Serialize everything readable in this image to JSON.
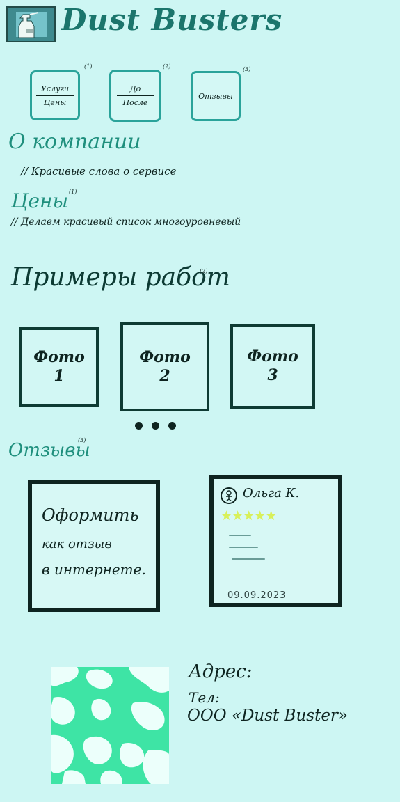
{
  "header": {
    "logo_icon": "spray-bottle-icon",
    "title": "Dust Busters"
  },
  "nav": [
    {
      "top": "Услуги",
      "bottom": "Цены",
      "sup": "(1)"
    },
    {
      "top": "До",
      "bottom": "После",
      "sup": "(2)"
    },
    {
      "top": "Отзывы",
      "bottom": "",
      "sup": "(3)"
    }
  ],
  "about": {
    "heading": "О компании",
    "note": "// Красивые слова о сервисе"
  },
  "prices": {
    "heading": "Цены",
    "sup": "(1)",
    "note": "// Делаем красивый список многоуровневый"
  },
  "works": {
    "heading": "Примеры работ",
    "sup": "(2)",
    "photos": [
      {
        "label": "Фото",
        "num": "1"
      },
      {
        "label": "Фото",
        "num": "2"
      },
      {
        "label": "Фото",
        "num": "3"
      }
    ]
  },
  "reviews": {
    "heading": "Отзывы",
    "sup": "(3)",
    "note_lines": [
      "Оформить",
      "как отзыв",
      "в интернете."
    ],
    "card": {
      "avatar_icon": "person-icon",
      "name": "Ольга К.",
      "stars": "★★★★★",
      "rating": 5,
      "star_color": "#d8f05a",
      "date": "09.09.2023"
    }
  },
  "footer": {
    "map_icon": "map-placeholder-icon",
    "address_label": "Адрес:",
    "phone_label": "Тел:",
    "company": "ООО «Dust Buster»"
  },
  "colors": {
    "background": "#cdf6f3",
    "accent": "#1b756c",
    "button_border": "#2aa39a",
    "map_green": "#3ee4a5"
  }
}
